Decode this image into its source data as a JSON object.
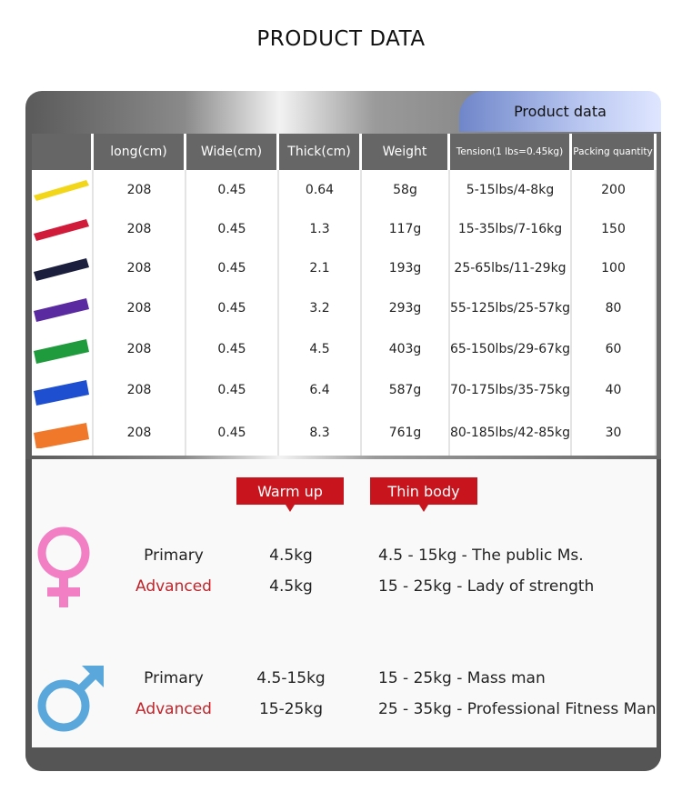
{
  "header": {
    "title": "PRODUCT DATA",
    "tab": "Product data"
  },
  "table": {
    "columns": [
      "long(cm)",
      "Wide(cm)",
      "Thick(cm)",
      "Weight",
      "Tension(1 lbs=0.45kg)",
      "Packing quantity"
    ],
    "rows": [
      [
        "208",
        "0.45",
        "0.64",
        "58g",
        "5-15lbs/4-8kg",
        "200"
      ],
      [
        "208",
        "0.45",
        "1.3",
        "117g",
        "15-35lbs/7-16kg",
        "150"
      ],
      [
        "208",
        "0.45",
        "2.1",
        "193g",
        "25-65lbs/11-29kg",
        "100"
      ],
      [
        "208",
        "0.45",
        "3.2",
        "293g",
        "55-125lbs/25-57kg",
        "80"
      ],
      [
        "208",
        "0.45",
        "4.5",
        "403g",
        "65-150lbs/29-67kg",
        "60"
      ],
      [
        "208",
        "0.45",
        "6.4",
        "587g",
        "70-175lbs/35-75kg",
        "40"
      ],
      [
        "208",
        "0.45",
        "8.3",
        "761g",
        "80-185lbs/42-85kg",
        "30"
      ]
    ]
  },
  "buttons": [
    "Warm up",
    "Thin body"
  ],
  "female": [
    {
      "level": "Primary",
      "weight": "4.5kg",
      "description": "4.5 - 15kg - The public Ms."
    },
    {
      "level": "Advanced",
      "weight": "4.5kg",
      "description": "15 - 25kg - Lady of strength"
    }
  ],
  "male": [
    {
      "level": "Primary",
      "weight": "4.5-15kg",
      "description": "15 - 25kg - Mass man"
    },
    {
      "level": "Advanced",
      "weight": "15-25kg",
      "description": "25 - 35kg - Professional Fitness Man"
    }
  ]
}
